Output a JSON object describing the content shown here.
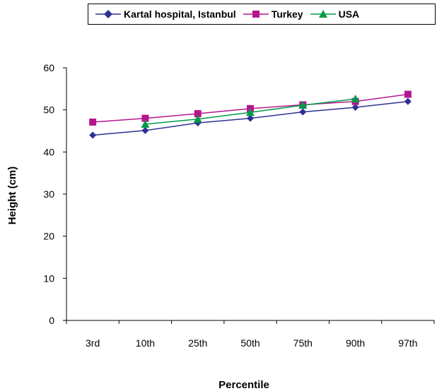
{
  "chart_data": {
    "type": "line",
    "title": "",
    "xlabel": "Percentile",
    "ylabel": "Height (cm)",
    "categories": [
      "3rd",
      "10th",
      "25th",
      "50th",
      "75th",
      "90th",
      "97th"
    ],
    "ylim": [
      0,
      60
    ],
    "yticks": [
      0,
      10,
      20,
      30,
      40,
      50,
      60
    ],
    "grid": false,
    "legend_position": "top",
    "series": [
      {
        "name": "Kartal hospital, Istanbul",
        "color": "#2e3192",
        "marker": "diamond",
        "values": [
          44.0,
          45.1,
          46.9,
          48.0,
          49.5,
          50.6,
          52.0
        ]
      },
      {
        "name": "Turkey",
        "color": "#b5168f",
        "marker": "square",
        "values": [
          47.1,
          48.0,
          49.1,
          50.3,
          51.2,
          52.0,
          53.7
        ]
      },
      {
        "name": "USA",
        "color": "#009b48",
        "marker": "triangle",
        "values": [
          null,
          46.6,
          47.8,
          49.4,
          51.1,
          52.6,
          null
        ]
      }
    ]
  }
}
